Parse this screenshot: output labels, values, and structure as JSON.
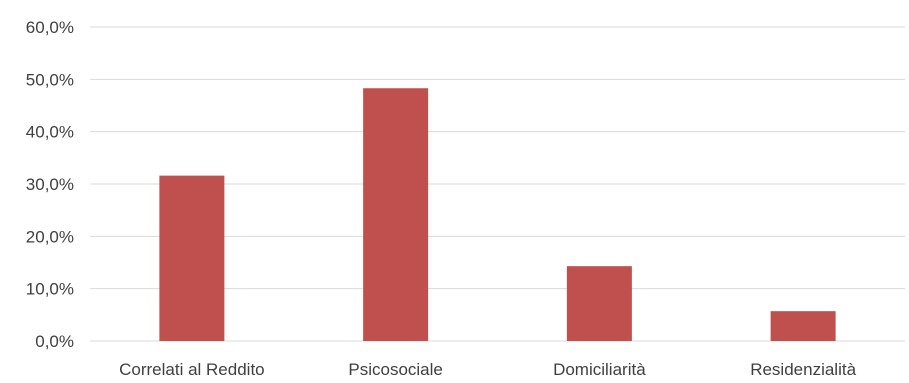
{
  "chart_data": {
    "type": "bar",
    "categories": [
      "Correlati al Reddito",
      "Psicosociale",
      "Domiciliarità",
      "Residenzialità"
    ],
    "values": [
      31.6,
      48.3,
      14.3,
      5.7
    ],
    "ylim": [
      0,
      60
    ],
    "yticks": [
      0,
      10,
      20,
      30,
      40,
      50,
      60
    ],
    "ytick_labels": [
      "0,0%",
      "10,0%",
      "20,0%",
      "30,0%",
      "40,0%",
      "50,0%",
      "60,0%"
    ],
    "grid": true,
    "legend": "none",
    "colors": {
      "bar": "#c0504d",
      "grid": "#d9d9d9",
      "text": "#404040"
    }
  }
}
